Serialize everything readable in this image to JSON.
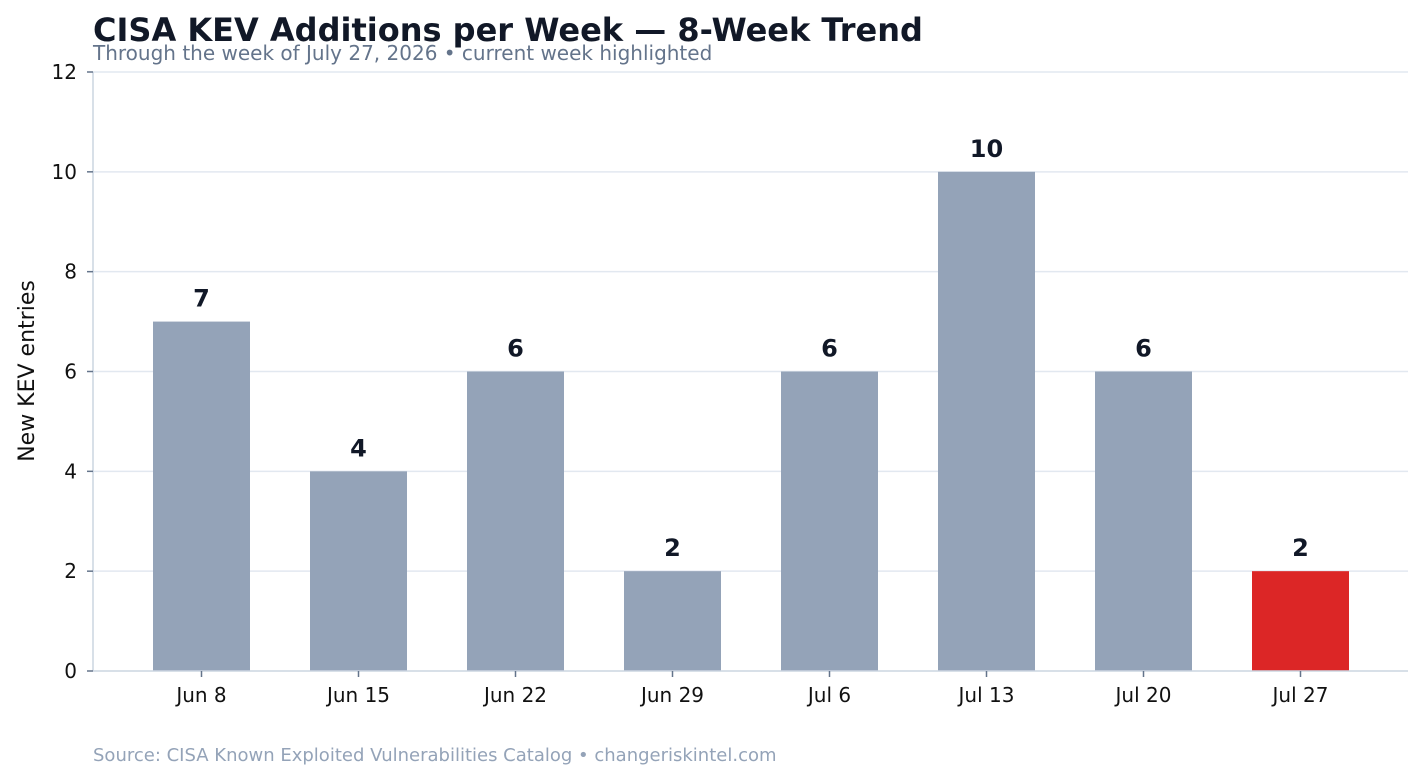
{
  "chart_data": {
    "type": "bar",
    "title": "CISA KEV Additions per Week — 8-Week Trend",
    "subtitle": "Through the week of July 27, 2026  •  current week highlighted",
    "ylabel": "New KEV entries",
    "xlabel": "",
    "categories": [
      "Jun 8",
      "Jun 15",
      "Jun 22",
      "Jun 29",
      "Jul 6",
      "Jul 13",
      "Jul 20",
      "Jul 27"
    ],
    "values": [
      7,
      4,
      6,
      2,
      6,
      10,
      6,
      2
    ],
    "highlight_category": "Jul 27",
    "ylim": [
      0,
      12
    ],
    "yticks": [
      0,
      2,
      4,
      6,
      8,
      10,
      12
    ],
    "grid": true,
    "legend": "none",
    "colors": {
      "bar": "#94a3b8",
      "highlight": "#dc2626"
    }
  },
  "footer": {
    "source": "Source: CISA Known Exploited Vulnerabilities Catalog  •  changeriskintel.com"
  }
}
